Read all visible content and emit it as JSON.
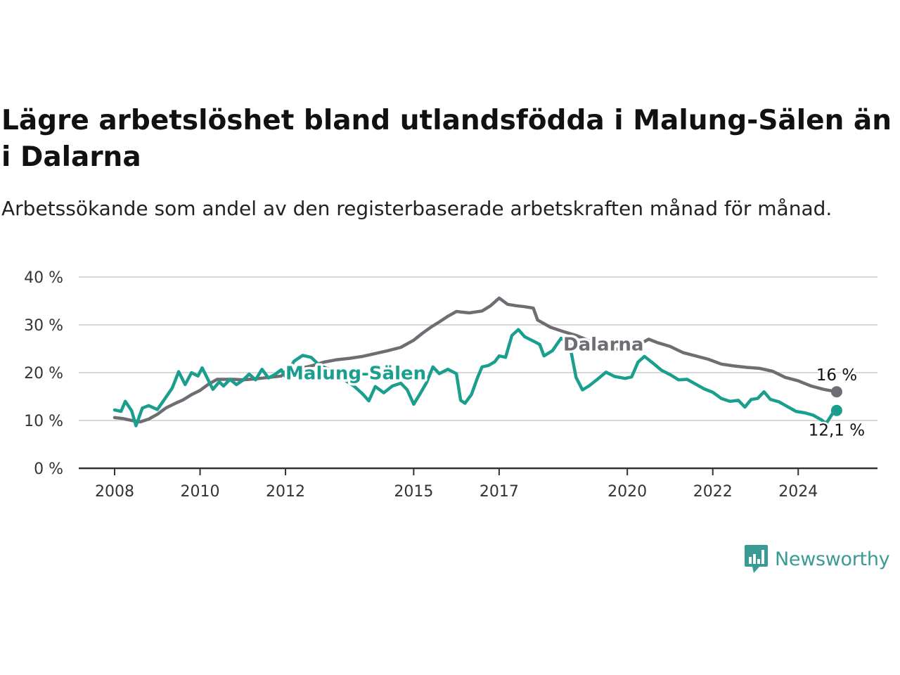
{
  "header": {
    "title": "Lägre arbetslöshet bland utlandsfödda i Malung-Sälen än i Dalarna",
    "subtitle": "Arbetssökande som andel av den registerbaserade arbetskraften månad för månad."
  },
  "brand": {
    "name": "Newsworthy",
    "icon": "newsworthy-logo-icon",
    "color": "#3a9b94"
  },
  "chart_data": {
    "type": "line",
    "title": "Lägre arbetslöshet bland utlandsfödda i Malung-Sälen än i Dalarna",
    "subtitle": "Arbetssökande som andel av den registerbaserade arbetskraften månad för månad.",
    "xlabel": "",
    "ylabel": "",
    "xlim": [
      2008.0,
      2025.0
    ],
    "ylim": [
      0,
      40
    ],
    "x_ticks": [
      {
        "value": 2008,
        "label": "2008"
      },
      {
        "value": 2010,
        "label": "2010"
      },
      {
        "value": 2012,
        "label": "2012"
      },
      {
        "value": 2015,
        "label": "2015"
      },
      {
        "value": 2017,
        "label": "2017"
      },
      {
        "value": 2020,
        "label": "2020"
      },
      {
        "value": 2022,
        "label": "2022"
      },
      {
        "value": 2024,
        "label": "2024"
      }
    ],
    "y_ticks": [
      {
        "value": 0,
        "label": "0 %"
      },
      {
        "value": 10,
        "label": "10 %"
      },
      {
        "value": 20,
        "label": "20 %"
      },
      {
        "value": 30,
        "label": "30 %"
      },
      {
        "value": 40,
        "label": "40 %"
      }
    ],
    "grid": true,
    "legend": "none",
    "series": [
      {
        "name": "Dalarna",
        "color": "#6e6d73",
        "end_label": "16 %",
        "points": [
          [
            2008.0,
            10.6
          ],
          [
            2008.2,
            10.4
          ],
          [
            2008.4,
            10.0
          ],
          [
            2008.6,
            9.7
          ],
          [
            2008.8,
            10.3
          ],
          [
            2009.0,
            11.3
          ],
          [
            2009.2,
            12.6
          ],
          [
            2009.4,
            13.5
          ],
          [
            2009.6,
            14.3
          ],
          [
            2009.8,
            15.4
          ],
          [
            2010.0,
            16.3
          ],
          [
            2010.2,
            17.6
          ],
          [
            2010.4,
            18.6
          ],
          [
            2010.6,
            18.6
          ],
          [
            2010.8,
            18.6
          ],
          [
            2011.0,
            18.5
          ],
          [
            2011.3,
            18.7
          ],
          [
            2011.6,
            19.0
          ],
          [
            2011.9,
            19.3
          ],
          [
            2012.0,
            20.2
          ],
          [
            2012.3,
            20.8
          ],
          [
            2012.6,
            21.4
          ],
          [
            2012.9,
            22.2
          ],
          [
            2013.2,
            22.7
          ],
          [
            2013.5,
            23.0
          ],
          [
            2013.8,
            23.4
          ],
          [
            2014.1,
            24.0
          ],
          [
            2014.4,
            24.6
          ],
          [
            2014.7,
            25.3
          ],
          [
            2015.0,
            26.8
          ],
          [
            2015.2,
            28.2
          ],
          [
            2015.4,
            29.5
          ],
          [
            2015.6,
            30.6
          ],
          [
            2015.8,
            31.8
          ],
          [
            2016.0,
            32.8
          ],
          [
            2016.3,
            32.5
          ],
          [
            2016.6,
            32.9
          ],
          [
            2016.8,
            34.0
          ],
          [
            2017.0,
            35.6
          ],
          [
            2017.2,
            34.3
          ],
          [
            2017.4,
            34.0
          ],
          [
            2017.6,
            33.8
          ],
          [
            2017.8,
            33.5
          ],
          [
            2017.9,
            31.0
          ],
          [
            2018.2,
            29.5
          ],
          [
            2018.5,
            28.6
          ],
          [
            2018.8,
            27.8
          ],
          [
            2019.1,
            26.7
          ],
          [
            2019.4,
            25.8
          ],
          [
            2019.7,
            25.0
          ],
          [
            2020.0,
            24.6
          ],
          [
            2020.2,
            25.5
          ],
          [
            2020.5,
            27.0
          ],
          [
            2020.7,
            26.3
          ],
          [
            2021.0,
            25.5
          ],
          [
            2021.3,
            24.2
          ],
          [
            2021.6,
            23.5
          ],
          [
            2021.9,
            22.8
          ],
          [
            2022.2,
            21.8
          ],
          [
            2022.5,
            21.4
          ],
          [
            2022.8,
            21.1
          ],
          [
            2023.1,
            20.9
          ],
          [
            2023.4,
            20.3
          ],
          [
            2023.7,
            19.0
          ],
          [
            2024.0,
            18.3
          ],
          [
            2024.3,
            17.2
          ],
          [
            2024.6,
            16.5
          ],
          [
            2024.9,
            16.0
          ]
        ]
      },
      {
        "name": "Malung-Sälen",
        "color": "#1a9e8e",
        "end_label": "12,1 %",
        "points": [
          [
            2008.0,
            12.2
          ],
          [
            2008.15,
            11.9
          ],
          [
            2008.25,
            14.0
          ],
          [
            2008.4,
            12.0
          ],
          [
            2008.5,
            8.9
          ],
          [
            2008.65,
            12.6
          ],
          [
            2008.8,
            13.1
          ],
          [
            2009.0,
            12.3
          ],
          [
            2009.15,
            14.2
          ],
          [
            2009.35,
            16.8
          ],
          [
            2009.5,
            20.2
          ],
          [
            2009.65,
            17.5
          ],
          [
            2009.8,
            20.0
          ],
          [
            2009.95,
            19.3
          ],
          [
            2010.05,
            21.0
          ],
          [
            2010.15,
            19.2
          ],
          [
            2010.3,
            16.5
          ],
          [
            2010.45,
            18.1
          ],
          [
            2010.55,
            17.2
          ],
          [
            2010.7,
            18.6
          ],
          [
            2010.85,
            17.5
          ],
          [
            2011.0,
            18.4
          ],
          [
            2011.15,
            19.7
          ],
          [
            2011.3,
            18.5
          ],
          [
            2011.45,
            20.7
          ],
          [
            2011.6,
            18.9
          ],
          [
            2011.75,
            19.6
          ],
          [
            2011.9,
            20.6
          ],
          [
            2012.0,
            19.2
          ],
          [
            2012.2,
            22.4
          ],
          [
            2012.4,
            23.6
          ],
          [
            2012.6,
            23.2
          ],
          [
            2012.8,
            21.5
          ],
          [
            2013.0,
            20.8
          ],
          [
            2013.2,
            19.6
          ],
          [
            2013.4,
            18.4
          ],
          [
            2013.6,
            17.2
          ],
          [
            2013.8,
            15.6
          ],
          [
            2013.95,
            14.1
          ],
          [
            2014.1,
            17.1
          ],
          [
            2014.3,
            15.8
          ],
          [
            2014.5,
            17.2
          ],
          [
            2014.7,
            17.8
          ],
          [
            2014.85,
            16.4
          ],
          [
            2015.0,
            13.4
          ],
          [
            2015.15,
            15.6
          ],
          [
            2015.3,
            17.9
          ],
          [
            2015.45,
            21.2
          ],
          [
            2015.6,
            19.8
          ],
          [
            2015.8,
            20.7
          ],
          [
            2016.0,
            19.8
          ],
          [
            2016.1,
            14.2
          ],
          [
            2016.2,
            13.6
          ],
          [
            2016.35,
            15.4
          ],
          [
            2016.5,
            19.1
          ],
          [
            2016.6,
            21.2
          ],
          [
            2016.75,
            21.5
          ],
          [
            2016.9,
            22.3
          ],
          [
            2017.0,
            23.5
          ],
          [
            2017.15,
            23.2
          ],
          [
            2017.3,
            27.8
          ],
          [
            2017.45,
            29.0
          ],
          [
            2017.6,
            27.5
          ],
          [
            2017.8,
            26.6
          ],
          [
            2017.95,
            25.9
          ],
          [
            2018.05,
            23.5
          ],
          [
            2018.25,
            24.6
          ],
          [
            2018.45,
            27.2
          ],
          [
            2018.65,
            26.0
          ],
          [
            2018.8,
            19.0
          ],
          [
            2018.95,
            16.4
          ],
          [
            2019.1,
            17.2
          ],
          [
            2019.3,
            18.6
          ],
          [
            2019.5,
            20.1
          ],
          [
            2019.7,
            19.2
          ],
          [
            2019.95,
            18.8
          ],
          [
            2020.1,
            19.1
          ],
          [
            2020.25,
            22.2
          ],
          [
            2020.4,
            23.4
          ],
          [
            2020.6,
            22.0
          ],
          [
            2020.8,
            20.5
          ],
          [
            2021.0,
            19.6
          ],
          [
            2021.2,
            18.5
          ],
          [
            2021.4,
            18.6
          ],
          [
            2021.6,
            17.6
          ],
          [
            2021.8,
            16.6
          ],
          [
            2022.0,
            15.9
          ],
          [
            2022.2,
            14.6
          ],
          [
            2022.4,
            14.0
          ],
          [
            2022.6,
            14.2
          ],
          [
            2022.75,
            12.8
          ],
          [
            2022.9,
            14.4
          ],
          [
            2023.05,
            14.6
          ],
          [
            2023.2,
            16.0
          ],
          [
            2023.35,
            14.4
          ],
          [
            2023.55,
            13.9
          ],
          [
            2023.75,
            12.9
          ],
          [
            2023.95,
            11.9
          ],
          [
            2024.15,
            11.6
          ],
          [
            2024.35,
            11.1
          ],
          [
            2024.55,
            10.1
          ],
          [
            2024.65,
            9.3
          ],
          [
            2024.8,
            11.4
          ],
          [
            2024.9,
            12.1
          ]
        ]
      }
    ]
  }
}
